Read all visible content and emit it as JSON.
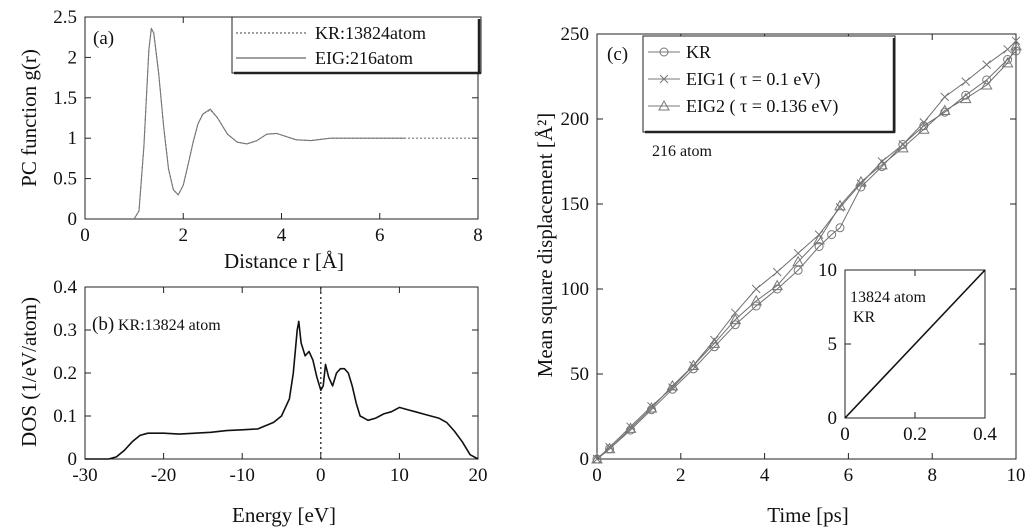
{
  "chart_data": [
    {
      "panel": "(a)",
      "type": "line",
      "xlabel": "Distance r [Å]",
      "ylabel": "PC function g(r)",
      "xlim": [
        0,
        8
      ],
      "ylim": [
        0,
        2.5
      ],
      "xticks": [
        0,
        2,
        4,
        6,
        8
      ],
      "yticks": [
        0,
        0.5,
        1,
        1.5,
        2,
        2.5
      ],
      "xtick_labels": [
        "0",
        "2",
        "4",
        "6",
        "8"
      ],
      "ytick_labels": [
        "0",
        "0.5",
        "1",
        "1.5",
        "2",
        "2.5"
      ],
      "legend_position": "top-right",
      "series": [
        {
          "name": "KR:13824atom",
          "style": "dotted",
          "x": [
            1.0,
            1.1,
            1.2,
            1.3,
            1.35,
            1.4,
            1.5,
            1.6,
            1.7,
            1.8,
            1.9,
            2.0,
            2.1,
            2.2,
            2.3,
            2.4,
            2.55,
            2.7,
            2.9,
            3.1,
            3.3,
            3.5,
            3.7,
            3.9,
            4.1,
            4.3,
            4.6,
            5.0,
            5.5,
            6.0,
            6.5,
            8.0
          ],
          "y": [
            0.0,
            0.1,
            0.9,
            2.1,
            2.35,
            2.3,
            1.8,
            1.15,
            0.62,
            0.36,
            0.3,
            0.42,
            0.68,
            0.95,
            1.18,
            1.3,
            1.35,
            1.25,
            1.05,
            0.95,
            0.93,
            0.97,
            1.05,
            1.06,
            1.02,
            0.98,
            0.97,
            1.0,
            1.0,
            1.0,
            1.0,
            1.0
          ]
        },
        {
          "name": "EIG:216atom",
          "style": "solid",
          "x": [
            1.0,
            1.1,
            1.2,
            1.3,
            1.35,
            1.4,
            1.5,
            1.6,
            1.7,
            1.8,
            1.9,
            2.0,
            2.1,
            2.2,
            2.3,
            2.4,
            2.55,
            2.7,
            2.9,
            3.1,
            3.3,
            3.5,
            3.7,
            3.9,
            4.1,
            4.3,
            4.6,
            5.0,
            5.5,
            6.0,
            6.5
          ],
          "y": [
            0.0,
            0.1,
            0.9,
            2.1,
            2.36,
            2.3,
            1.8,
            1.15,
            0.62,
            0.36,
            0.3,
            0.42,
            0.68,
            0.95,
            1.18,
            1.3,
            1.36,
            1.25,
            1.05,
            0.95,
            0.93,
            0.97,
            1.05,
            1.06,
            1.02,
            0.98,
            0.97,
            1.0,
            1.0,
            1.0,
            1.0
          ]
        }
      ]
    },
    {
      "panel": "(b)",
      "type": "line",
      "annotation": "KR:13824 atom",
      "xlabel": "Energy [eV]",
      "ylabel": "DOS (1/eV/atom)",
      "xlim": [
        -30,
        20
      ],
      "ylim": [
        0,
        0.4
      ],
      "xticks": [
        -30,
        -20,
        -10,
        0,
        10,
        20
      ],
      "yticks": [
        0,
        0.1,
        0.2,
        0.3,
        0.4
      ],
      "xtick_labels": [
        "-30",
        "-20",
        "-10",
        "0",
        "10",
        "20"
      ],
      "ytick_labels": [
        "0",
        "0.1",
        "0.2",
        "0.3",
        "0.4"
      ],
      "reference_line_x": 0,
      "series": [
        {
          "name": "",
          "x": [
            -30,
            -27,
            -26,
            -25,
            -24,
            -23,
            -22,
            -20,
            -18,
            -16,
            -14,
            -12,
            -10,
            -8,
            -6,
            -5,
            -4,
            -3.5,
            -3,
            -2.8,
            -2.5,
            -2,
            -1.5,
            -1,
            -0.5,
            0,
            0.3,
            0.6,
            1,
            1.5,
            2,
            2.5,
            3,
            3.5,
            4,
            4.5,
            5,
            5.5,
            6,
            7,
            8,
            9,
            10,
            11,
            12,
            13,
            14,
            15,
            16,
            17,
            18,
            19,
            20
          ],
          "y": [
            0.0,
            0.0,
            0.005,
            0.02,
            0.04,
            0.055,
            0.06,
            0.06,
            0.058,
            0.06,
            0.062,
            0.066,
            0.068,
            0.07,
            0.085,
            0.1,
            0.14,
            0.2,
            0.3,
            0.32,
            0.27,
            0.24,
            0.25,
            0.23,
            0.19,
            0.16,
            0.17,
            0.22,
            0.19,
            0.17,
            0.2,
            0.21,
            0.21,
            0.2,
            0.17,
            0.13,
            0.1,
            0.095,
            0.09,
            0.095,
            0.105,
            0.11,
            0.12,
            0.115,
            0.11,
            0.105,
            0.1,
            0.095,
            0.085,
            0.065,
            0.04,
            0.01,
            0.0
          ]
        }
      ]
    },
    {
      "panel": "(c)",
      "type": "line",
      "annotation": "216 atom",
      "xlabel": "Time [ps]",
      "ylabel": "Mean square displacement [Å²]",
      "xlim": [
        0,
        10
      ],
      "ylim": [
        0,
        250
      ],
      "xticks": [
        0,
        2,
        4,
        6,
        8,
        10
      ],
      "yticks": [
        0,
        50,
        100,
        150,
        200,
        250
      ],
      "xtick_labels": [
        "0",
        "2",
        "4",
        "6",
        "8",
        "10"
      ],
      "ytick_labels": [
        "0",
        "50",
        "100",
        "150",
        "200",
        "250"
      ],
      "legend_position": "top-left",
      "series": [
        {
          "name": "KR",
          "marker": "circle",
          "x": [
            0,
            0.3,
            0.8,
            1.3,
            1.8,
            2.3,
            2.8,
            3.3,
            3.8,
            4.3,
            4.8,
            5.3,
            5.6,
            5.8,
            6.3,
            6.8,
            7.3,
            7.8,
            8.3,
            8.8,
            9.3,
            9.8,
            10
          ],
          "y": [
            0,
            6,
            17,
            29,
            41,
            53,
            66,
            79,
            90,
            100,
            111,
            125,
            132,
            136,
            160,
            172,
            185,
            196,
            204,
            214,
            223,
            235,
            240
          ]
        },
        {
          "name": "EIG1 ( τ = 0.1 eV)",
          "marker": "cross",
          "x": [
            0,
            0.3,
            0.8,
            1.3,
            1.8,
            2.3,
            2.8,
            3.3,
            3.8,
            4.3,
            4.8,
            5.3,
            5.8,
            6.3,
            6.8,
            7.3,
            7.8,
            8.3,
            8.8,
            9.3,
            9.8,
            10
          ],
          "y": [
            0,
            7,
            19,
            31,
            42,
            55,
            70,
            86,
            100,
            110,
            121,
            132,
            148,
            162,
            175,
            185,
            198,
            213,
            222,
            232,
            241,
            246
          ]
        },
        {
          "name": "EIG2 ( τ = 0.136 eV)",
          "marker": "triangle",
          "x": [
            0,
            0.3,
            0.8,
            1.3,
            1.8,
            2.3,
            2.8,
            3.3,
            3.8,
            4.3,
            4.8,
            5.3,
            5.8,
            6.3,
            6.8,
            7.3,
            7.8,
            8.3,
            8.8,
            9.3,
            9.8,
            10
          ],
          "y": [
            0,
            6,
            18,
            30,
            43,
            55,
            68,
            82,
            93,
            102,
            116,
            129,
            149,
            163,
            173,
            183,
            194,
            205,
            212,
            220,
            233,
            243
          ]
        }
      ]
    },
    {
      "panel": "(c) inset",
      "type": "line",
      "annotation": [
        "13824 atom",
        "KR"
      ],
      "xlim": [
        0,
        0.4
      ],
      "ylim": [
        0,
        10
      ],
      "xticks": [
        0,
        0.2,
        0.4
      ],
      "yticks": [
        0,
        5,
        10
      ],
      "xtick_labels": [
        "0",
        "0.2",
        "0.4"
      ],
      "ytick_labels": [
        "0",
        "5",
        "10"
      ],
      "series": [
        {
          "name": "KR",
          "x": [
            0,
            0.4
          ],
          "y": [
            0,
            10
          ]
        }
      ]
    }
  ]
}
